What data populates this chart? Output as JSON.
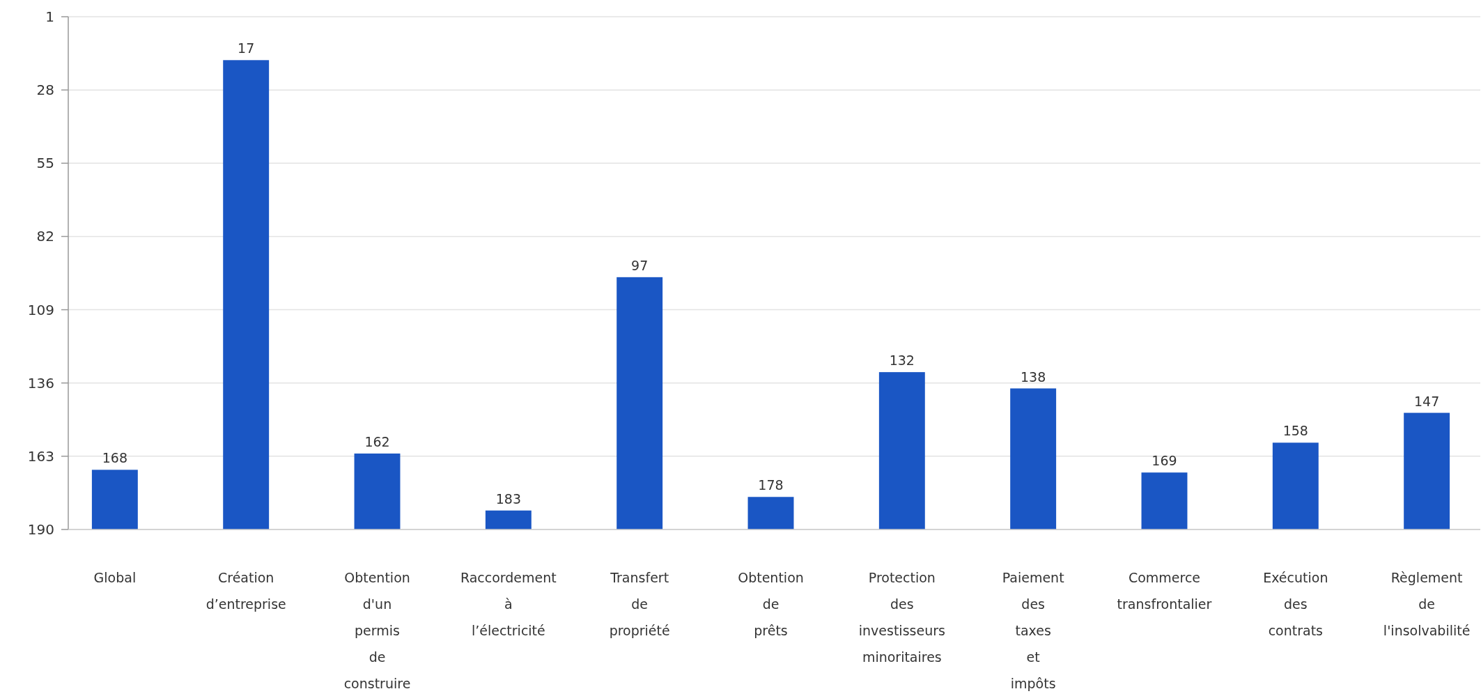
{
  "chart_data": {
    "type": "bar",
    "categories": [
      "Global",
      "Création d’entreprise",
      "Obtention d'un permis de construire",
      "Raccordement à l’électricité",
      "Transfert de propriété",
      "Obtention de prêts",
      "Protection des investisseurs minoritaires",
      "Paiement des taxes et impôts",
      "Commerce transfrontalier",
      "Exécution des contrats",
      "Règlement de l'insolvabilité"
    ],
    "base": [
      190,
      190,
      190,
      190,
      190,
      190,
      190,
      190,
      190,
      190,
      190
    ],
    "values": [
      -22,
      -173,
      -28,
      -7,
      -93,
      -12,
      -58,
      -52,
      -21,
      -32,
      -43
    ],
    "value_labels": [
      "168",
      "17",
      "162",
      "183",
      "97",
      "178",
      "132",
      "138",
      "169",
      "158",
      "147"
    ],
    "color": "#1a56c4",
    "ylim": [
      190,
      1
    ],
    "yticks": [
      1,
      28,
      55,
      82,
      109,
      136,
      163,
      190
    ],
    "grid": "y"
  }
}
